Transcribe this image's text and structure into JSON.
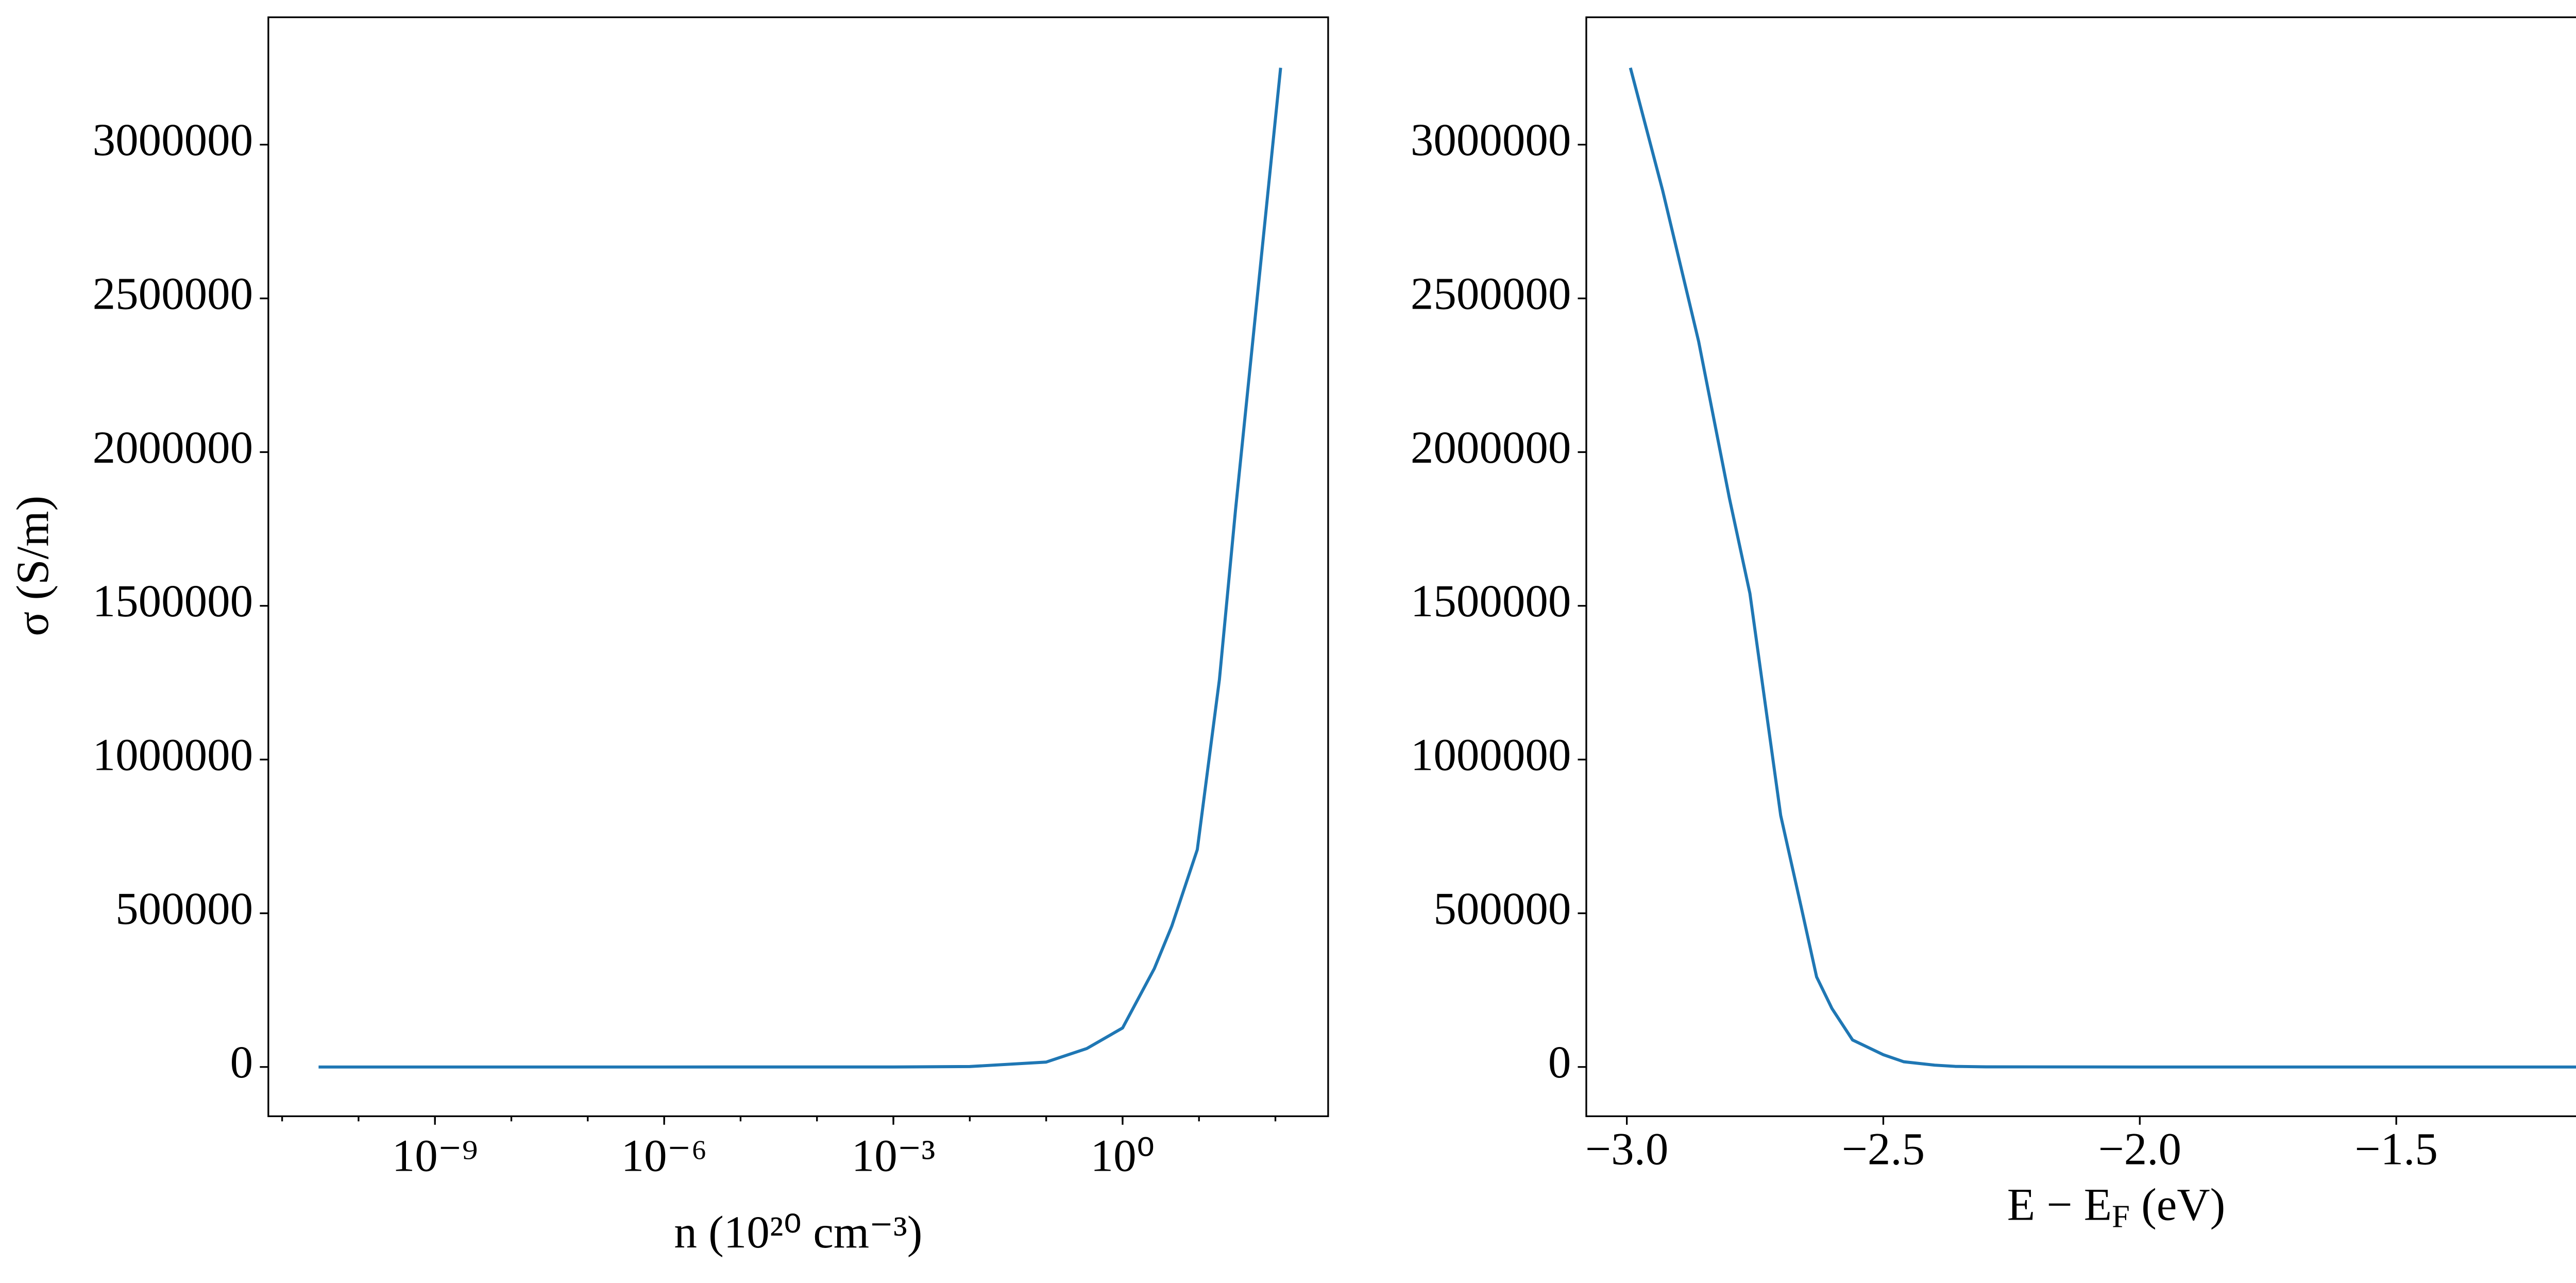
{
  "chart_data": [
    {
      "type": "line",
      "xscale": "log",
      "xlabel": "n (10²⁰ cm⁻³)",
      "ylabel": "σ (S/m)",
      "x": [
        3e-11,
        1e-09,
        1e-06,
        0.001,
        0.01,
        0.1,
        0.34,
        1,
        2.6,
        4.4,
        9.5,
        18.5,
        30,
        51,
        117
      ],
      "series": [
        {
          "color": "#1f77b4",
          "values": [
            0,
            0,
            0,
            100,
            1500,
            16000,
            60000,
            127000,
            320000,
            458000,
            707000,
            1260000,
            1810000,
            2370000,
            3250000
          ]
        }
      ],
      "xlim": [
        6.6e-12,
        490
      ],
      "xticks": [
        {
          "value": 1e-09,
          "label": "10⁻⁹"
        },
        {
          "value": 1e-06,
          "label": "10⁻⁶"
        },
        {
          "value": 0.001,
          "label": "10⁻³"
        },
        {
          "value": 1,
          "label": "10⁰"
        }
      ],
      "ylim": [
        -160221,
        3414365
      ],
      "yticks": [
        0,
        500000,
        1000000,
        1500000,
        2000000,
        2500000,
        3000000
      ]
    },
    {
      "type": "line",
      "xscale": "linear",
      "xlabel": [
        "E − E",
        "F",
        " (eV)"
      ],
      "x": [
        -2.993,
        -2.93,
        -2.86,
        -2.8,
        -2.76,
        -2.7,
        -2.66,
        -2.63,
        -2.6,
        -2.56,
        -2.5,
        -2.46,
        -2.4,
        -2.36,
        -2.3,
        -2.0,
        -1.5,
        -1.106
      ],
      "series": [
        {
          "color": "#1f77b4",
          "values": [
            3250000,
            2850000,
            2360000,
            1850000,
            1540000,
            818000,
            520000,
            293000,
            190000,
            88000,
            40000,
            17000,
            6000,
            2000,
            500,
            0,
            0,
            0
          ]
        }
      ],
      "xlim": [
        -3.079,
        -1.013
      ],
      "xticks": [
        {
          "value": -3.0,
          "label": "−3.0"
        },
        {
          "value": -2.5,
          "label": "−2.5"
        },
        {
          "value": -2.0,
          "label": "−2.0"
        },
        {
          "value": -1.5,
          "label": "−1.5"
        }
      ],
      "ylim": [
        -160221,
        3414365
      ],
      "yticks": [
        0,
        500000,
        1000000,
        1500000,
        2000000,
        2500000,
        3000000
      ]
    }
  ]
}
